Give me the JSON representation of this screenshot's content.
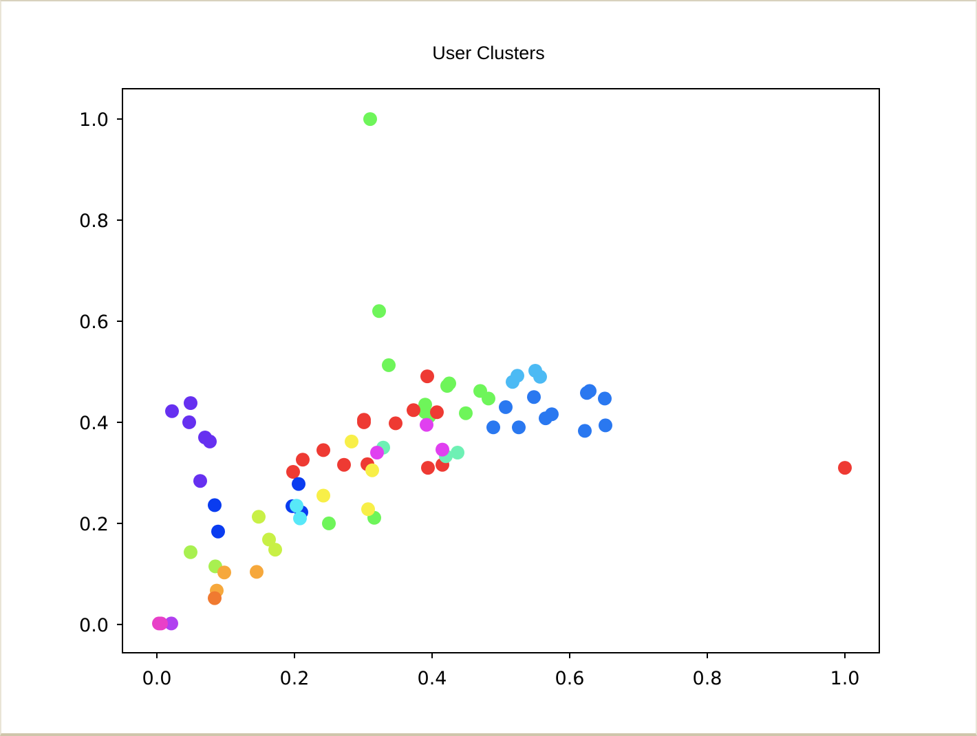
{
  "chart_data": {
    "type": "scatter",
    "title": "User Clusters",
    "xlabel": "",
    "ylabel": "",
    "xlim": [
      -0.05,
      1.05
    ],
    "ylim": [
      -0.056,
      1.06
    ],
    "xticks": [
      "0.0",
      "0.2",
      "0.4",
      "0.6",
      "0.8",
      "1.0"
    ],
    "yticks": [
      "0.0",
      "0.2",
      "0.4",
      "0.6",
      "0.8",
      "1.0"
    ],
    "grid": false,
    "legend": "none",
    "points": [
      {
        "x": 0.31,
        "y": 1.0,
        "color": "#6ef55a"
      },
      {
        "x": 0.323,
        "y": 0.62,
        "color": "#6ef55a"
      },
      {
        "x": 0.337,
        "y": 0.513,
        "color": "#6ef55a"
      },
      {
        "x": 0.425,
        "y": 0.477,
        "color": "#6ef55a"
      },
      {
        "x": 0.422,
        "y": 0.472,
        "color": "#6ef55a"
      },
      {
        "x": 0.47,
        "y": 0.462,
        "color": "#6ef55a"
      },
      {
        "x": 0.482,
        "y": 0.447,
        "color": "#6ef55a"
      },
      {
        "x": 0.39,
        "y": 0.435,
        "color": "#6ef55a"
      },
      {
        "x": 0.39,
        "y": 0.42,
        "color": "#6ef55a"
      },
      {
        "x": 0.396,
        "y": 0.412,
        "color": "#6ef55a"
      },
      {
        "x": 0.449,
        "y": 0.418,
        "color": "#6ef55a"
      },
      {
        "x": 0.316,
        "y": 0.211,
        "color": "#6ef55a"
      },
      {
        "x": 0.25,
        "y": 0.2,
        "color": "#6ef55a"
      },
      {
        "x": 0.393,
        "y": 0.491,
        "color": "#ee3a33"
      },
      {
        "x": 0.373,
        "y": 0.424,
        "color": "#ee3a33"
      },
      {
        "x": 0.407,
        "y": 0.42,
        "color": "#ee3a33"
      },
      {
        "x": 0.301,
        "y": 0.405,
        "color": "#ee3a33"
      },
      {
        "x": 0.301,
        "y": 0.4,
        "color": "#ee3a33"
      },
      {
        "x": 0.347,
        "y": 0.398,
        "color": "#ee3a33"
      },
      {
        "x": 0.242,
        "y": 0.345,
        "color": "#ee3a33"
      },
      {
        "x": 0.212,
        "y": 0.326,
        "color": "#ee3a33"
      },
      {
        "x": 0.272,
        "y": 0.316,
        "color": "#ee3a33"
      },
      {
        "x": 0.306,
        "y": 0.317,
        "color": "#ee3a33"
      },
      {
        "x": 0.415,
        "y": 0.316,
        "color": "#ee3a33"
      },
      {
        "x": 0.394,
        "y": 0.31,
        "color": "#ee3a33"
      },
      {
        "x": 0.198,
        "y": 0.302,
        "color": "#ee3a33"
      },
      {
        "x": 1.0,
        "y": 0.31,
        "color": "#ee3a33"
      },
      {
        "x": 0.524,
        "y": 0.492,
        "color": "#4cbaf4"
      },
      {
        "x": 0.517,
        "y": 0.48,
        "color": "#4cbaf4"
      },
      {
        "x": 0.55,
        "y": 0.502,
        "color": "#4cbaf4"
      },
      {
        "x": 0.557,
        "y": 0.49,
        "color": "#4cbaf4"
      },
      {
        "x": 0.548,
        "y": 0.45,
        "color": "#2a78f0"
      },
      {
        "x": 0.507,
        "y": 0.43,
        "color": "#2a78f0"
      },
      {
        "x": 0.574,
        "y": 0.416,
        "color": "#2a78f0"
      },
      {
        "x": 0.565,
        "y": 0.408,
        "color": "#2a78f0"
      },
      {
        "x": 0.489,
        "y": 0.39,
        "color": "#2a78f0"
      },
      {
        "x": 0.526,
        "y": 0.39,
        "color": "#2a78f0"
      },
      {
        "x": 0.629,
        "y": 0.462,
        "color": "#2a78f0"
      },
      {
        "x": 0.625,
        "y": 0.458,
        "color": "#2a78f0"
      },
      {
        "x": 0.651,
        "y": 0.447,
        "color": "#2a78f0"
      },
      {
        "x": 0.652,
        "y": 0.394,
        "color": "#2a78f0"
      },
      {
        "x": 0.622,
        "y": 0.383,
        "color": "#2a78f0"
      },
      {
        "x": 0.022,
        "y": 0.422,
        "color": "#6630f0"
      },
      {
        "x": 0.049,
        "y": 0.438,
        "color": "#6630f0"
      },
      {
        "x": 0.047,
        "y": 0.4,
        "color": "#6630f0"
      },
      {
        "x": 0.07,
        "y": 0.37,
        "color": "#6630f0"
      },
      {
        "x": 0.077,
        "y": 0.362,
        "color": "#6630f0"
      },
      {
        "x": 0.063,
        "y": 0.284,
        "color": "#6630f0"
      },
      {
        "x": 0.084,
        "y": 0.236,
        "color": "#0a3cf0"
      },
      {
        "x": 0.089,
        "y": 0.184,
        "color": "#0a3cf0"
      },
      {
        "x": 0.206,
        "y": 0.278,
        "color": "#0a3cf0"
      },
      {
        "x": 0.197,
        "y": 0.234,
        "color": "#0a3cf0"
      },
      {
        "x": 0.21,
        "y": 0.222,
        "color": "#0a3cf0"
      },
      {
        "x": 0.203,
        "y": 0.235,
        "color": "#58e8f8"
      },
      {
        "x": 0.208,
        "y": 0.21,
        "color": "#58e8f8"
      },
      {
        "x": 0.283,
        "y": 0.362,
        "color": "#f8ef48"
      },
      {
        "x": 0.313,
        "y": 0.305,
        "color": "#f8ef48"
      },
      {
        "x": 0.242,
        "y": 0.255,
        "color": "#f8ef48"
      },
      {
        "x": 0.307,
        "y": 0.228,
        "color": "#f8ef48"
      },
      {
        "x": 0.329,
        "y": 0.35,
        "color": "#6ef0b4"
      },
      {
        "x": 0.42,
        "y": 0.333,
        "color": "#6ef0b4"
      },
      {
        "x": 0.437,
        "y": 0.34,
        "color": "#6ef0b4"
      },
      {
        "x": 0.392,
        "y": 0.395,
        "color": "#e040f0"
      },
      {
        "x": 0.32,
        "y": 0.34,
        "color": "#e040f0"
      },
      {
        "x": 0.415,
        "y": 0.346,
        "color": "#e040f0"
      },
      {
        "x": 0.148,
        "y": 0.213,
        "color": "#c8f046"
      },
      {
        "x": 0.163,
        "y": 0.168,
        "color": "#c8f046"
      },
      {
        "x": 0.172,
        "y": 0.148,
        "color": "#c8f046"
      },
      {
        "x": 0.049,
        "y": 0.143,
        "color": "#a8f050"
      },
      {
        "x": 0.085,
        "y": 0.115,
        "color": "#a8f050"
      },
      {
        "x": 0.098,
        "y": 0.103,
        "color": "#f6a83c"
      },
      {
        "x": 0.145,
        "y": 0.104,
        "color": "#f6a83c"
      },
      {
        "x": 0.087,
        "y": 0.067,
        "color": "#f6a83c"
      },
      {
        "x": 0.084,
        "y": 0.052,
        "color": "#f07a30"
      },
      {
        "x": 0.021,
        "y": 0.002,
        "color": "#b040f0"
      },
      {
        "x": 0.003,
        "y": 0.002,
        "color": "#e840c8"
      },
      {
        "x": 0.006,
        "y": 0.002,
        "color": "#e840c8"
      }
    ]
  }
}
